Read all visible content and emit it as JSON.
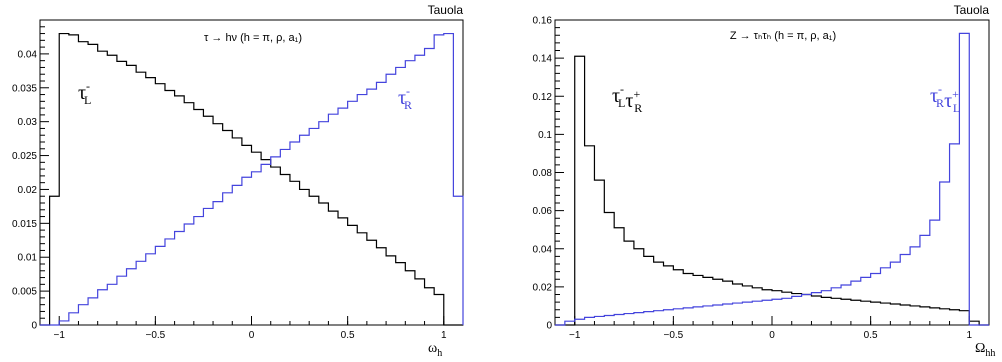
{
  "chart_data": [
    {
      "type": "histogram",
      "generator_label": "Tauola",
      "annotation": "τ → hν (h = π, ρ, a₁)",
      "xlabel": "ω_h",
      "xlim": [
        -1.1,
        1.1
      ],
      "ylim": [
        0,
        0.045
      ],
      "x_ticks": [
        -1,
        -0.5,
        0,
        0.5,
        1
      ],
      "x_tick_labels": [
        "−1",
        "−0.5",
        "0",
        "0.5",
        "1"
      ],
      "y_ticks": [
        0,
        0.005,
        0.01,
        0.015,
        0.02,
        0.025,
        0.03,
        0.035,
        0.04
      ],
      "y_tick_labels": [
        "0",
        "0.005",
        "0.01",
        "0.015",
        "0.02",
        "0.025",
        "0.03",
        "0.035",
        "0.04"
      ],
      "bin_edges_range": [
        -1.1,
        1.1
      ],
      "n_bins": 44,
      "series": [
        {
          "name": "τ⁻_L",
          "color": "#000000",
          "values": [
            0,
            0.019,
            0.043,
            0.0428,
            0.0418,
            0.0414,
            0.0404,
            0.0398,
            0.0389,
            0.0383,
            0.0373,
            0.0365,
            0.0356,
            0.0346,
            0.0338,
            0.0328,
            0.0318,
            0.0308,
            0.0297,
            0.0287,
            0.0276,
            0.0265,
            0.0255,
            0.0244,
            0.0233,
            0.0222,
            0.0212,
            0.02,
            0.019,
            0.018,
            0.0168,
            0.0158,
            0.0147,
            0.0136,
            0.0125,
            0.0114,
            0.0102,
            0.0092,
            0.008,
            0.0068,
            0.0055,
            0.0045,
            0,
            0
          ]
        },
        {
          "name": "τ⁻_R",
          "color": "#4444dd",
          "values": [
            0,
            0,
            0.0006,
            0.0018,
            0.003,
            0.004,
            0.0052,
            0.006,
            0.0072,
            0.0083,
            0.0094,
            0.0105,
            0.0116,
            0.0127,
            0.0138,
            0.0149,
            0.016,
            0.0172,
            0.0182,
            0.0195,
            0.0206,
            0.0218,
            0.0226,
            0.0237,
            0.0248,
            0.0259,
            0.027,
            0.028,
            0.029,
            0.03,
            0.0311,
            0.032,
            0.033,
            0.034,
            0.0348,
            0.0358,
            0.037,
            0.038,
            0.039,
            0.0398,
            0.0408,
            0.0428,
            0.043,
            0.019
          ]
        }
      ],
      "legend_labels": [
        {
          "base": "τ",
          "sup": "-",
          "sub": "L",
          "color": "#000000"
        },
        {
          "base": "τ",
          "sup": "-",
          "sub": "R",
          "color": "#4444dd"
        }
      ]
    },
    {
      "type": "histogram",
      "generator_label": "Tauola",
      "annotation": "Z → τₕτₕ (h = π, ρ, a₁)",
      "xlabel": "Ω_hh",
      "xlim": [
        -1.1,
        1.1
      ],
      "ylim": [
        0,
        0.16
      ],
      "x_ticks": [
        -1,
        -0.5,
        0,
        0.5,
        1
      ],
      "x_tick_labels": [
        "−1",
        "−0.5",
        "0",
        "0.5",
        "1"
      ],
      "y_ticks": [
        0,
        0.02,
        0.04,
        0.06,
        0.08,
        0.1,
        0.12,
        0.14,
        0.16
      ],
      "y_tick_labels": [
        "0",
        "0.02",
        "0.04",
        "0.06",
        "0.08",
        "0.1",
        "0.12",
        "0.14",
        "0.16"
      ],
      "bin_edges_range": [
        -1.1,
        1.1
      ],
      "n_bins": 44,
      "series": [
        {
          "name": "τ⁻_L τ⁺_R",
          "color": "#000000",
          "values": [
            0,
            0,
            0.141,
            0.094,
            0.076,
            0.059,
            0.051,
            0.044,
            0.04,
            0.036,
            0.033,
            0.031,
            0.029,
            0.027,
            0.026,
            0.025,
            0.024,
            0.023,
            0.0215,
            0.0205,
            0.0195,
            0.0185,
            0.018,
            0.0172,
            0.0165,
            0.016,
            0.0152,
            0.0145,
            0.014,
            0.0135,
            0.013,
            0.0125,
            0.012,
            0.0115,
            0.011,
            0.0105,
            0.01,
            0.0095,
            0.009,
            0.0085,
            0.008,
            0.0075,
            0.002,
            0
          ]
        },
        {
          "name": "τ⁻_R τ⁺_L",
          "color": "#4444dd",
          "values": [
            0,
            0.002,
            0.003,
            0.004,
            0.0045,
            0.005,
            0.0055,
            0.006,
            0.0065,
            0.007,
            0.0075,
            0.008,
            0.0085,
            0.009,
            0.0095,
            0.01,
            0.0105,
            0.011,
            0.0115,
            0.012,
            0.0125,
            0.013,
            0.0135,
            0.014,
            0.015,
            0.016,
            0.017,
            0.018,
            0.0195,
            0.021,
            0.023,
            0.025,
            0.027,
            0.03,
            0.033,
            0.037,
            0.041,
            0.047,
            0.055,
            0.075,
            0.095,
            0.153,
            0,
            0
          ]
        }
      ],
      "legend_labels": [
        {
          "base": "τ",
          "sup": "-",
          "sub": "L",
          "base2": "τ",
          "sup2": "+",
          "sub2": "R",
          "color": "#000000"
        },
        {
          "base": "τ",
          "sup": "-",
          "sub": "R",
          "base2": "τ",
          "sup2": "+",
          "sub2": "L",
          "color": "#4444dd"
        }
      ]
    }
  ]
}
